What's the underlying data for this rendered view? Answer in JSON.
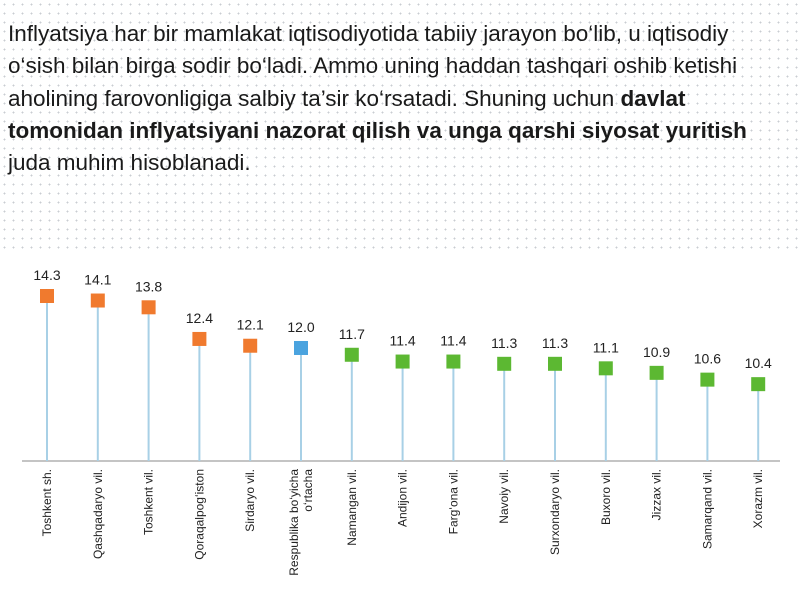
{
  "text": {
    "p1": "Inflyatsiya har bir mamlakat iqtisodiyotida tabiiy jarayon bo‘lib, u iqtisodiy o‘sish bilan birga sodir bo‘ladi. Ammo uning haddan tashqari oshib ketishi aholining farovonligiga salbiy ta’sir ko‘rsatadi. Shuning uchun ",
    "bold": "davlat tomonidan inflyatsiyani nazorat qilish va unga qarshi siyosat yuritish",
    "p2": " juda muhim hisoblanadi."
  },
  "chart_data": {
    "type": "lollipop",
    "categories": [
      "Toshkent sh.",
      "Qashqadaryo vil.",
      "Toshkent vil.",
      "Qoraqalpog‘iston",
      "Sirdaryo vil.",
      "Respublika bo‘yicha\no‘rtacha",
      "Namangan vil.",
      "Andijon vil.",
      "Farg‘ona vil.",
      "Navoiy vil.",
      "Surxondaryo vil.",
      "Buxoro vil.",
      "Jizzax vil.",
      "Samarqand vil.",
      "Xorazm vil."
    ],
    "value_labels": [
      "14.3",
      "14.1",
      "13.8",
      "12.4",
      "12.1",
      "12.0",
      "11.7",
      "11.4",
      "11.4",
      "11.3",
      "11.3",
      "11.1",
      "10.9",
      "10.6",
      "10.4"
    ],
    "values": [
      14.3,
      14.1,
      13.8,
      12.4,
      12.1,
      12.0,
      11.7,
      11.4,
      11.4,
      11.3,
      11.3,
      11.1,
      10.9,
      10.6,
      10.4
    ],
    "marker_colors": [
      "#f07a2e",
      "#f07a2e",
      "#f07a2e",
      "#f07a2e",
      "#f07a2e",
      "#4aa3df",
      "#5cb832",
      "#5cb832",
      "#5cb832",
      "#5cb832",
      "#5cb832",
      "#5cb832",
      "#5cb832",
      "#5cb832",
      "#5cb832"
    ],
    "stem_color": "#a8d0e6",
    "axis_color": "#b0b0b0",
    "ylim": [
      7.0,
      14.3
    ]
  }
}
